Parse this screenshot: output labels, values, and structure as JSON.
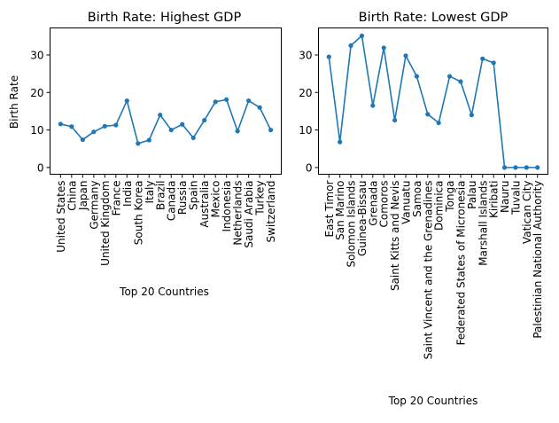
{
  "chart_data": [
    {
      "type": "line",
      "title": "Birth Rate: Highest GDP",
      "xlabel": "Top 20 Countries",
      "ylabel": "Birth Rate",
      "ylim": [
        -1.8,
        37.2
      ],
      "yticks": [
        "0",
        "10",
        "20",
        "30"
      ],
      "grid": false,
      "color": "#1f77b4",
      "categories": [
        "United States",
        "China",
        "Japan",
        "Germany",
        "United Kingdom",
        "France",
        "India",
        "South Korea",
        "Italy",
        "Brazil",
        "Canada",
        "Russia",
        "Spain",
        "Australia",
        "Mexico",
        "Indonesia",
        "Netherlands",
        "Saudi Arabia",
        "Turkey",
        "Switzerland"
      ],
      "values": [
        11.6,
        10.9,
        7.4,
        9.5,
        11.0,
        11.3,
        17.8,
        6.4,
        7.3,
        14.0,
        10.0,
        11.5,
        7.9,
        12.6,
        17.5,
        18.1,
        9.7,
        17.8,
        16.0,
        10.0
      ]
    },
    {
      "type": "line",
      "title": "Birth Rate: Lowest GDP",
      "xlabel": "Top 20 Countries",
      "ylabel": "",
      "ylim": [
        -1.8,
        37.2
      ],
      "yticks": [
        "0",
        "10",
        "20",
        "30"
      ],
      "grid": false,
      "color": "#1f77b4",
      "categories": [
        "East Timor",
        "San Marino",
        "Solomon Islands",
        "Guinea-Bissau",
        "Grenada",
        "Comoros",
        "Saint Kitts and Nevis",
        "Vanuatu",
        "Samoa",
        "Saint Vincent and the Grenadines",
        "Dominica",
        "Tonga",
        "Federated States of Micronesia",
        "Palau",
        "Marshall Islands",
        "Kiribati",
        "Nauru",
        "Tuvalu",
        "Vatican City",
        "Palestinian National Authority"
      ],
      "values": [
        29.5,
        6.8,
        32.5,
        35.1,
        16.5,
        31.9,
        12.6,
        29.8,
        24.3,
        14.2,
        11.9,
        24.3,
        22.9,
        14.0,
        29.0,
        27.9,
        0.0,
        0.0,
        0.0,
        0.0
      ]
    }
  ]
}
